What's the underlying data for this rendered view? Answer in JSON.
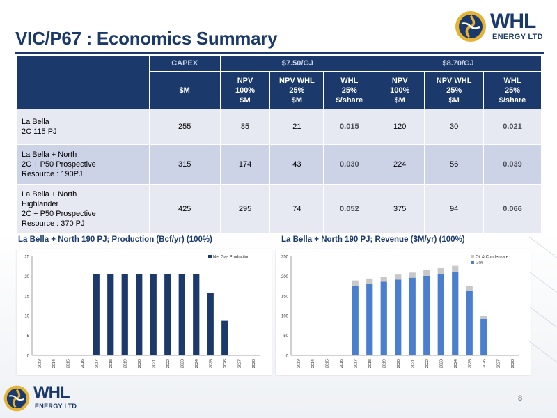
{
  "slide": {
    "title": "VIC/P67 : Economics Summary",
    "logo_name": "WHL",
    "logo_sub": "ENERGY LTD",
    "page_number": "8"
  },
  "table": {
    "group_headers": [
      "CAPEX",
      "$7.50/GJ",
      "$8.70/GJ"
    ],
    "sub_headers": [
      [
        "$M"
      ],
      [
        "NPV",
        "100%",
        "$M"
      ],
      [
        "NPV WHL",
        "25%",
        "$M"
      ],
      [
        "WHL",
        "25%",
        "$/share"
      ],
      [
        "NPV",
        "100%",
        "$M"
      ],
      [
        "NPV WHL",
        "25%",
        "$M"
      ],
      [
        "WHL",
        "25%",
        "$/share"
      ]
    ],
    "rows": [
      {
        "name_lines": [
          "La Bella",
          "2C 115 PJ"
        ],
        "values": [
          "255",
          "85",
          "21",
          "0.015",
          "120",
          "30",
          "0.021"
        ]
      },
      {
        "name_lines": [
          "La Bella + North",
          "2C + P50 Prospective",
          "Resource : 190PJ"
        ],
        "values": [
          "315",
          "174",
          "43",
          "0.030",
          "224",
          "56",
          "0.039"
        ]
      },
      {
        "name_lines": [
          "La Bella + North +",
          "Highlander",
          "2C + P50 Prospective",
          "Resource : 370 PJ"
        ],
        "values": [
          "425",
          "295",
          "74",
          "0.052",
          "375",
          "94",
          "0.066"
        ]
      }
    ]
  },
  "chart_data": [
    {
      "type": "bar",
      "title": "La Bella + North 190 PJ;   Production (Bcf/yr) (100%)",
      "categories": [
        "2013",
        "2014",
        "2015",
        "2016",
        "2017",
        "2018",
        "2019",
        "2020",
        "2021",
        "2022",
        "2023",
        "2024",
        "2025",
        "2026",
        "2027",
        "2028"
      ],
      "series": [
        {
          "name": "Net Gas Production",
          "values": [
            0,
            0,
            0,
            0,
            20.6,
            20.6,
            20.6,
            20.6,
            20.6,
            20.6,
            20.6,
            20.6,
            15.7,
            8.7,
            0,
            0
          ]
        }
      ],
      "ylim": [
        0,
        25
      ],
      "yticks": [
        "0",
        "5",
        "10",
        "15",
        "20",
        "25"
      ],
      "legend": "top-right",
      "colors": [
        "#1b3a6b"
      ]
    },
    {
      "type": "bar",
      "title": "La Bella + North 190 PJ;   Revenue ($M/yr) (100%)",
      "categories": [
        "2013",
        "2014",
        "2015",
        "2016",
        "2017",
        "2018",
        "2019",
        "2020",
        "2021",
        "2022",
        "2023",
        "2024",
        "2025",
        "2026",
        "2027",
        "2028"
      ],
      "stacked": true,
      "series": [
        {
          "name": "Gas",
          "values": [
            0,
            0,
            0,
            0,
            176,
            181,
            186,
            191,
            196,
            201,
            206,
            211,
            164,
            92,
            0,
            0
          ]
        },
        {
          "name": "Oil & Condensate",
          "values": [
            0,
            0,
            0,
            0,
            13,
            13,
            13,
            13,
            13,
            14,
            14,
            15,
            12,
            7,
            0,
            0
          ]
        }
      ],
      "ylim": [
        0,
        250
      ],
      "yticks": [
        "0",
        "50",
        "100",
        "150",
        "200",
        "250"
      ],
      "legend": "top-right",
      "colors": [
        "#4a7fd0",
        "#c8c8c8"
      ]
    }
  ]
}
